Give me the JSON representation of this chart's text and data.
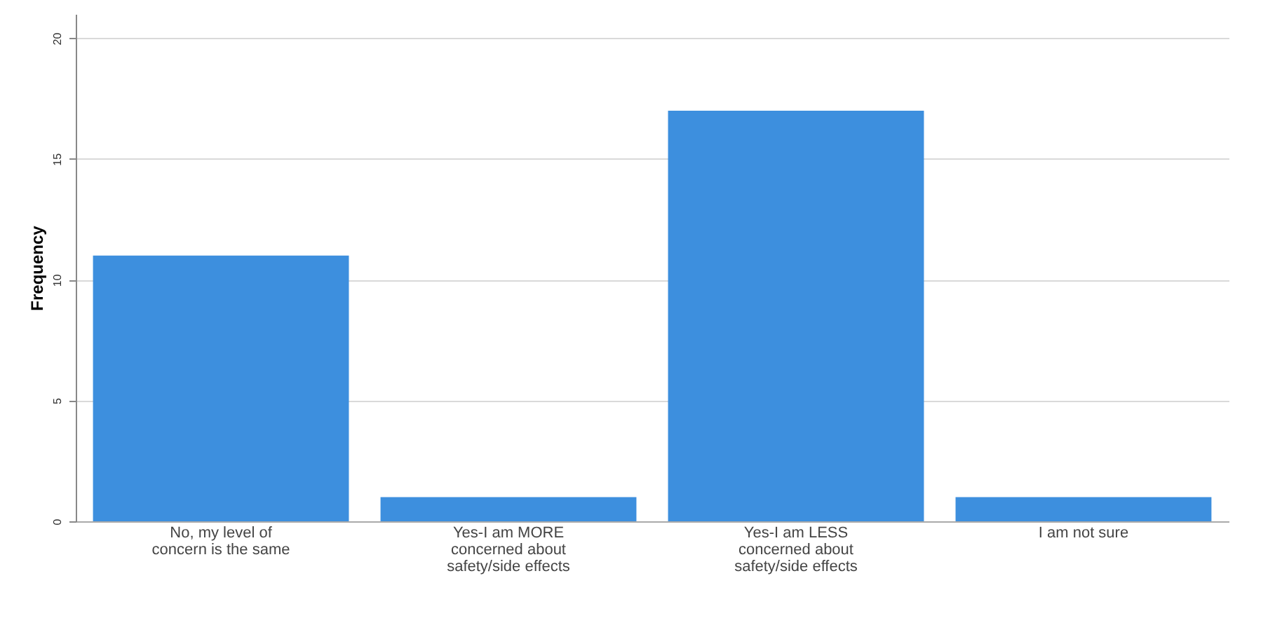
{
  "chart_data": {
    "type": "bar",
    "ylabel": "Frequency",
    "categories": [
      "No, my level of concern is the same",
      "Yes-I am MORE concerned about safety/side effects",
      "Yes-I am LESS concerned about safety/side effects",
      "I am not sure"
    ],
    "values": [
      11,
      1,
      17,
      1
    ],
    "color": "#3d8fde",
    "ylim": [
      0,
      21
    ],
    "yticks": [
      0,
      5,
      10,
      15,
      20
    ],
    "grid": "y"
  }
}
